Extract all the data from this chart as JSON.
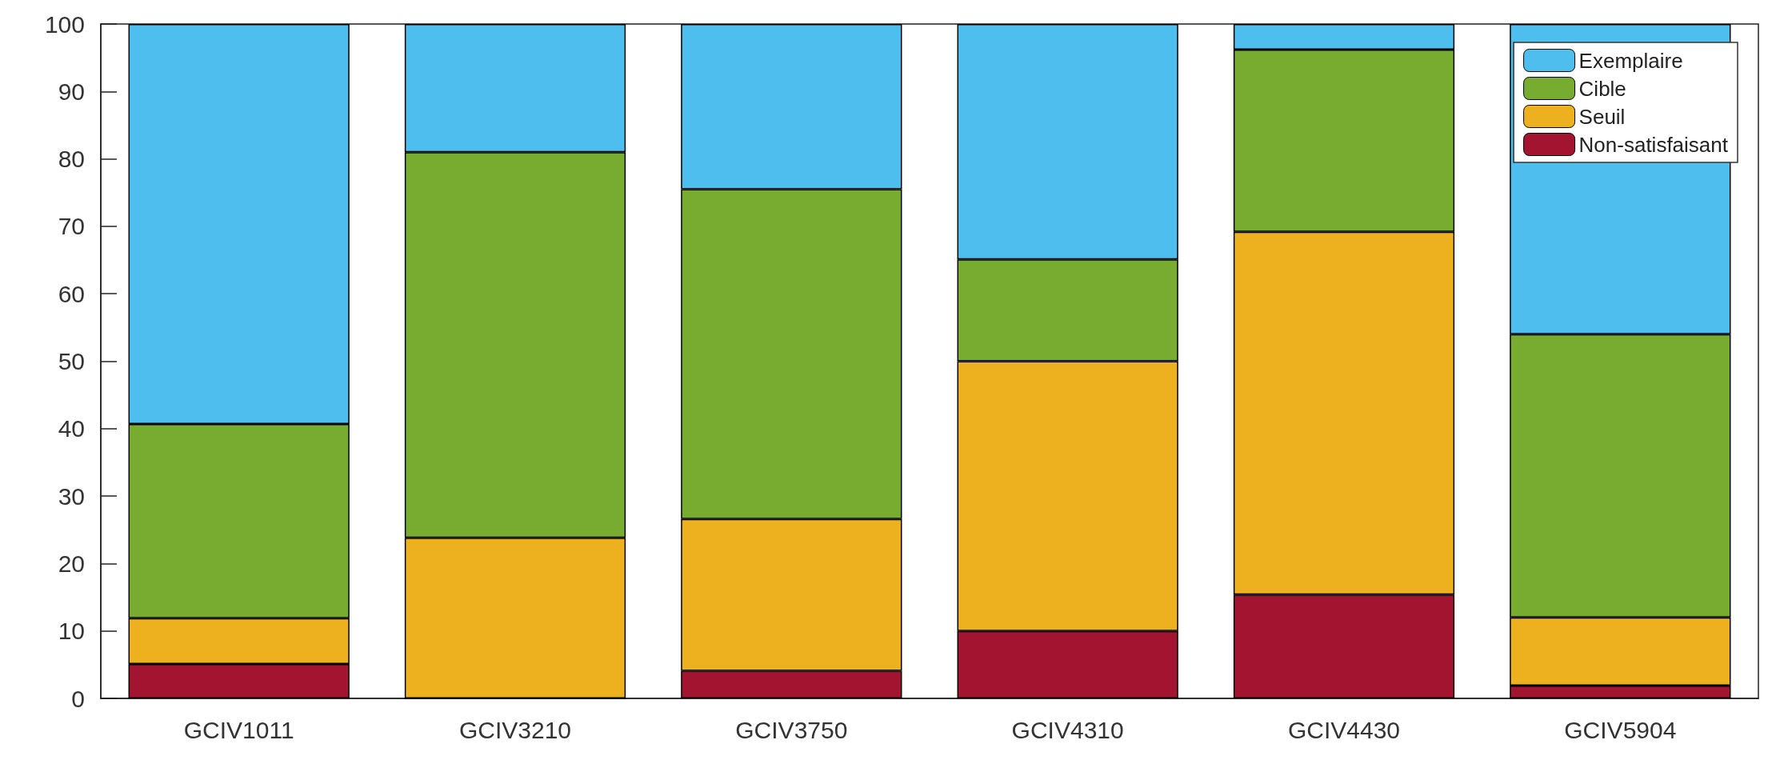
{
  "chart_data": {
    "type": "bar",
    "stacked": true,
    "categories": [
      "GCIV1011",
      "GCIV3210",
      "GCIV3750",
      "GCIV4310",
      "GCIV4430",
      "GCIV5904"
    ],
    "series": [
      {
        "name": "Non-satisfaisant",
        "color": "#a2142f",
        "values": [
          5.1,
          0,
          4.1,
          10,
          15.4,
          1.9
        ]
      },
      {
        "name": "Seuil",
        "color": "#edb120",
        "values": [
          6.8,
          23.8,
          22.5,
          40,
          53.8,
          10.1
        ]
      },
      {
        "name": "Cible",
        "color": "#77ac30",
        "values": [
          28.8,
          57.2,
          48.9,
          15.1,
          27,
          42
        ]
      },
      {
        "name": "Exemplaire",
        "color": "#4dbeee",
        "values": [
          59.3,
          19,
          24.5,
          34.9,
          3.8,
          46
        ]
      }
    ],
    "ylim": [
      0,
      100
    ],
    "yticks": [
      0,
      10,
      20,
      30,
      40,
      50,
      60,
      70,
      80,
      90,
      100
    ],
    "grid": false,
    "legend": "top right"
  }
}
